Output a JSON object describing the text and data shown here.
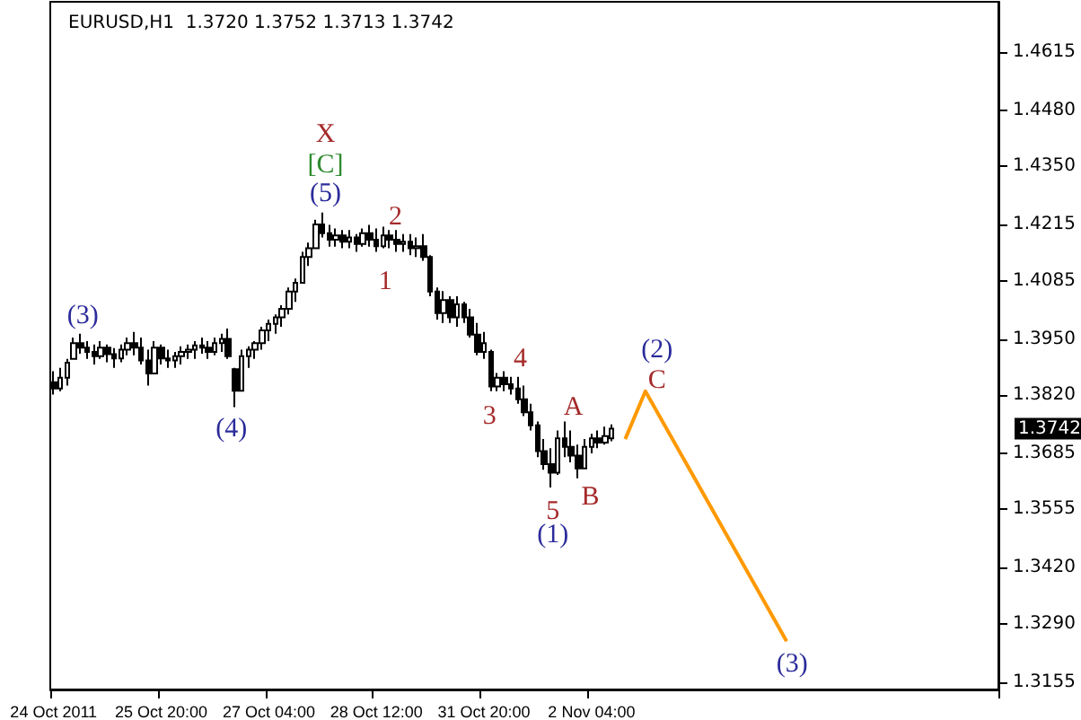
{
  "chart_data": {
    "type": "candlestick",
    "title": "EURUSD,H1  1.3720 1.3752 1.3713 1.3742",
    "color": "#000000",
    "categories": [
      "24 Oct 2011",
      null,
      null,
      null,
      null,
      null,
      null,
      null,
      null,
      null,
      null,
      null,
      null,
      null,
      null,
      null,
      "25 Oct 20:00",
      null,
      null,
      null,
      null,
      null,
      null,
      null,
      null,
      null,
      null,
      null,
      null,
      null,
      null,
      null,
      "27 Oct 04:00",
      null,
      null,
      null,
      null,
      null,
      null,
      null,
      null,
      null,
      null,
      null,
      null,
      null,
      null,
      null,
      "28 Oct 12:00",
      null,
      null,
      null,
      null,
      null,
      null,
      null,
      null,
      null,
      null,
      null,
      null,
      null,
      null,
      null,
      "31 Oct 20:00",
      null,
      null,
      null,
      null,
      null,
      null,
      null,
      null,
      null,
      null,
      null,
      null,
      null,
      null,
      null,
      "2 Nov 04:00",
      null,
      null,
      null,
      null,
      null,
      null,
      null,
      null,
      null,
      null,
      null,
      null,
      null,
      null,
      null,
      null,
      null,
      null,
      null,
      null,
      null,
      null,
      null,
      null,
      null,
      null,
      null,
      null,
      null,
      null,
      null,
      null,
      null,
      null,
      null,
      null,
      null,
      null,
      null,
      null,
      null,
      null,
      null,
      null,
      null,
      null,
      null,
      null,
      null,
      null,
      null,
      null,
      null,
      null,
      null,
      null,
      null,
      null,
      null,
      null
    ],
    "ohlc": [
      [
        1.385,
        1.3875,
        1.3821,
        1.3835
      ],
      [
        1.3835,
        1.3883,
        1.3829,
        1.386
      ],
      [
        1.386,
        1.3904,
        1.3842,
        1.3895
      ],
      [
        1.3904,
        1.3953,
        1.3904,
        1.394
      ],
      [
        1.394,
        1.3962,
        1.3916,
        1.393
      ],
      [
        1.393,
        1.3945,
        1.3904,
        1.392
      ],
      [
        1.392,
        1.3937,
        1.3891,
        1.391
      ],
      [
        1.391,
        1.3945,
        1.3904,
        1.393
      ],
      [
        1.393,
        1.3937,
        1.3896,
        1.3915
      ],
      [
        1.3915,
        1.3929,
        1.3883,
        1.3905
      ],
      [
        1.3905,
        1.3937,
        1.3896,
        1.3925
      ],
      [
        1.3925,
        1.3953,
        1.3912,
        1.394
      ],
      [
        1.394,
        1.3966,
        1.3912,
        1.393
      ],
      [
        1.393,
        1.3953,
        1.3891,
        1.39
      ],
      [
        1.39,
        1.3925,
        1.3842,
        1.387
      ],
      [
        1.387,
        1.3945,
        1.387,
        1.393
      ],
      [
        1.393,
        1.3937,
        1.3891,
        1.3905
      ],
      [
        1.3905,
        1.3925,
        1.3883,
        1.39
      ],
      [
        1.39,
        1.392,
        1.3883,
        1.391
      ],
      [
        1.391,
        1.3933,
        1.3891,
        1.392
      ],
      [
        1.392,
        1.3937,
        1.3904,
        1.3925
      ],
      [
        1.3925,
        1.3945,
        1.3904,
        1.3935
      ],
      [
        1.3935,
        1.3953,
        1.3916,
        1.393
      ],
      [
        1.393,
        1.3945,
        1.3904,
        1.392
      ],
      [
        1.392,
        1.3953,
        1.3912,
        1.394
      ],
      [
        1.394,
        1.3962,
        1.392,
        1.395
      ],
      [
        1.395,
        1.3974,
        1.3904,
        1.391
      ],
      [
        1.388,
        1.3883,
        1.3792,
        1.383
      ],
      [
        1.383,
        1.3925,
        1.383,
        1.391
      ],
      [
        1.391,
        1.3933,
        1.3883,
        1.3925
      ],
      [
        1.3925,
        1.3945,
        1.3904,
        1.394
      ],
      [
        1.394,
        1.3978,
        1.3925,
        1.397
      ],
      [
        1.397,
        1.3995,
        1.3945,
        1.3985
      ],
      [
        1.3985,
        1.4007,
        1.3962,
        1.4
      ],
      [
        1.4,
        1.4028,
        1.3978,
        1.402
      ],
      [
        1.402,
        1.4069,
        1.4007,
        1.406
      ],
      [
        1.406,
        1.409,
        1.4036,
        1.408
      ],
      [
        1.408,
        1.4152,
        1.4078,
        1.414
      ],
      [
        1.414,
        1.4173,
        1.4119,
        1.416
      ],
      [
        1.416,
        1.4226,
        1.416,
        1.4215
      ],
      [
        1.4215,
        1.4243,
        1.4185,
        1.4195
      ],
      [
        1.4195,
        1.4214,
        1.4164,
        1.418
      ],
      [
        1.418,
        1.4206,
        1.4164,
        1.419
      ],
      [
        1.419,
        1.4202,
        1.416,
        1.4175
      ],
      [
        1.4175,
        1.4202,
        1.416,
        1.4185
      ],
      [
        1.4185,
        1.4193,
        1.4152,
        1.417
      ],
      [
        1.417,
        1.4206,
        1.4164,
        1.4195
      ],
      [
        1.4195,
        1.4214,
        1.4164,
        1.418
      ],
      [
        1.418,
        1.4206,
        1.4152,
        1.4165
      ],
      [
        1.4165,
        1.421,
        1.416,
        1.419
      ],
      [
        1.419,
        1.4202,
        1.416,
        1.418
      ],
      [
        1.418,
        1.4202,
        1.4152,
        1.417
      ],
      [
        1.417,
        1.4193,
        1.4152,
        1.4175
      ],
      [
        1.4175,
        1.4193,
        1.4144,
        1.416
      ],
      [
        1.416,
        1.4185,
        1.414,
        1.4165
      ],
      [
        1.4165,
        1.4193,
        1.4131,
        1.414
      ],
      [
        1.414,
        1.4144,
        1.4049,
        1.406
      ],
      [
        1.406,
        1.4069,
        1.3995,
        1.401
      ],
      [
        1.401,
        1.4061,
        1.3987,
        1.404
      ],
      [
        1.404,
        1.4049,
        1.3987,
        1.4
      ],
      [
        1.4,
        1.4049,
        1.3978,
        1.403
      ],
      [
        1.403,
        1.4036,
        1.3987,
        1.4
      ],
      [
        1.4,
        1.402,
        1.3953,
        1.396
      ],
      [
        1.396,
        1.3987,
        1.3912,
        1.392
      ],
      [
        1.392,
        1.3966,
        1.3904,
        1.394
      ],
      [
        1.392,
        1.3925,
        1.3829,
        1.384
      ],
      [
        1.384,
        1.3871,
        1.3829,
        1.386
      ],
      [
        1.386,
        1.3875,
        1.3829,
        1.3845
      ],
      [
        1.3845,
        1.3862,
        1.3821,
        1.3835
      ],
      [
        1.3835,
        1.3862,
        1.38,
        1.381
      ],
      [
        1.381,
        1.3842,
        1.3771,
        1.378
      ],
      [
        1.378,
        1.38,
        1.3738,
        1.375
      ],
      [
        1.375,
        1.3759,
        1.3676,
        1.369
      ],
      [
        1.369,
        1.3718,
        1.3647,
        1.366
      ],
      [
        1.366,
        1.3697,
        1.3606,
        1.364
      ],
      [
        1.364,
        1.3738,
        1.3635,
        1.372
      ],
      [
        1.372,
        1.3759,
        1.3676,
        1.37
      ],
      [
        1.37,
        1.3738,
        1.3664,
        1.368
      ],
      [
        1.368,
        1.3705,
        1.3627,
        1.365
      ],
      [
        1.365,
        1.3718,
        1.365,
        1.37
      ],
      [
        1.37,
        1.373,
        1.3685,
        1.372
      ],
      [
        1.372,
        1.3738,
        1.3697,
        1.371
      ],
      [
        1.371,
        1.3747,
        1.3705,
        1.3725
      ],
      [
        1.372,
        1.3752,
        1.3713,
        1.3742
      ],
      null,
      null,
      null,
      null,
      null,
      null,
      null,
      null,
      null,
      null,
      null,
      null,
      null,
      null,
      null,
      null,
      null,
      null,
      null,
      null,
      null,
      null,
      null,
      null,
      null,
      null,
      null,
      null,
      null,
      null,
      null,
      null,
      null,
      null,
      null,
      null,
      null,
      null,
      null,
      null,
      null,
      null,
      null,
      null,
      null,
      null,
      null,
      null,
      null,
      null,
      null,
      null,
      null,
      null,
      null,
      null,
      null
    ],
    "series": [
      {
        "type": "line",
        "color": "#ff9900",
        "marker": "none",
        "values": [
          null,
          null,
          null,
          null,
          null,
          null,
          null,
          null,
          null,
          null,
          null,
          null,
          null,
          null,
          null,
          null,
          null,
          null,
          null,
          null,
          null,
          null,
          null,
          null,
          null,
          null,
          null,
          null,
          null,
          null,
          null,
          null,
          null,
          null,
          null,
          null,
          null,
          null,
          null,
          null,
          null,
          null,
          null,
          null,
          null,
          null,
          null,
          null,
          null,
          null,
          null,
          null,
          null,
          null,
          null,
          null,
          null,
          null,
          null,
          null,
          null,
          null,
          null,
          null,
          null,
          null,
          null,
          null,
          null,
          null,
          null,
          null,
          null,
          null,
          null,
          null,
          null,
          null,
          null,
          null,
          null,
          null,
          null,
          null,
          null,
          1.3718,
          null,
          null,
          1.3829,
          null,
          null,
          null,
          null,
          null,
          null,
          null,
          null,
          null,
          null,
          null,
          null,
          null,
          null,
          null,
          null,
          null,
          null,
          null,
          null,
          1.325,
          null,
          null,
          null,
          null,
          null,
          null,
          null,
          null,
          null,
          null,
          null,
          null,
          null,
          null,
          null,
          null,
          null,
          null,
          null,
          null,
          null,
          null,
          null,
          null,
          null,
          null,
          null,
          null,
          null,
          null,
          null
        ]
      }
    ],
    "ylim": [
      1.3138,
      1.4731
    ],
    "yticks": [
      {
        "value": 1.4615,
        "label": "1.4615"
      },
      {
        "value": 1.448,
        "label": "1.4480"
      },
      {
        "value": 1.435,
        "label": "1.4350"
      },
      {
        "value": 1.4215,
        "label": "1.4215"
      },
      {
        "value": 1.4085,
        "label": "1.4085"
      },
      {
        "value": 1.395,
        "label": "1.3950"
      },
      {
        "value": 1.382,
        "label": "1.3820"
      },
      {
        "value": 1.3685,
        "label": "1.3685"
      },
      {
        "value": 1.3555,
        "label": "1.3555"
      },
      {
        "value": 1.342,
        "label": "1.3420"
      },
      {
        "value": 1.329,
        "label": "1.3290"
      },
      {
        "value": 1.3155,
        "label": "1.3155"
      }
    ],
    "annotations": [
      "1.3742",
      "(3)",
      "(4)",
      "(5)",
      "X",
      "[C]",
      "2",
      "1",
      "4",
      "3",
      "A",
      "5",
      "(1)",
      "B",
      "(2)",
      "C",
      "(3)"
    ],
    "grid": false
  }
}
